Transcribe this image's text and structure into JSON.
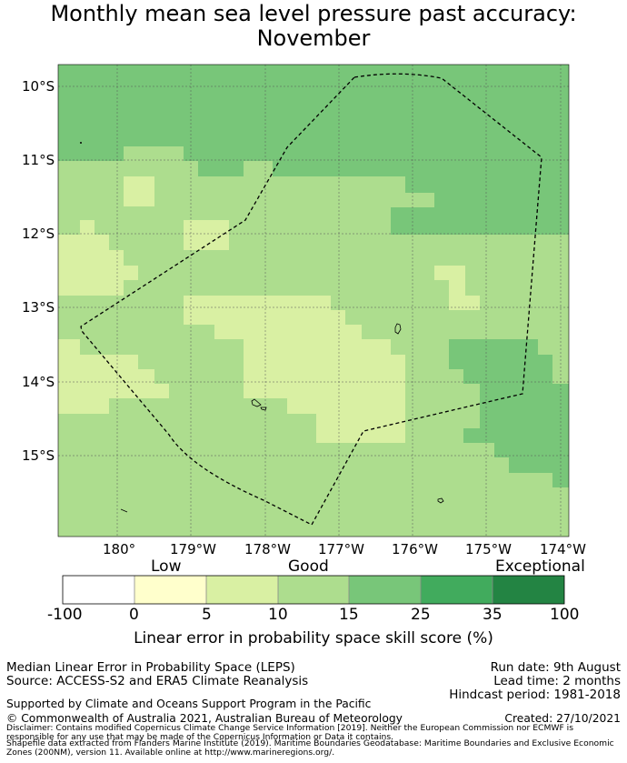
{
  "title": {
    "line1": "Monthly mean sea level pressure past accuracy:",
    "line2": "November"
  },
  "map": {
    "lat_ticks": [
      "10°S",
      "11°S",
      "12°S",
      "13°S",
      "14°S",
      "15°S"
    ],
    "lon_ticks": [
      "180°",
      "179°W",
      "178°W",
      "177°W",
      "176°W",
      "175°W",
      "174°W"
    ],
    "grid": true,
    "boundary": "dashed"
  },
  "colorbar": {
    "category_labels": [
      "Low",
      "Good",
      "Exceptional"
    ],
    "ticks": [
      "-100",
      "0",
      "5",
      "10",
      "15",
      "25",
      "35",
      "100"
    ],
    "colors": [
      "#ffffff",
      "#ffffcc",
      "#d9f0a3",
      "#addd8e",
      "#78c679",
      "#41ab5d",
      "#238443"
    ],
    "title": "Linear error in probability space skill score (%)"
  },
  "footer": {
    "method": "Median Linear Error in Probability Space (LEPS)",
    "source": "Source: ACCESS-S2 and ERA5 Climate Reanalysis",
    "run_date": "Run date: 9th August",
    "lead_time": "Lead time: 2 months",
    "hindcast": "Hindcast period: 1981-2018",
    "supported": "Supported by Climate and Oceans Support Program in the Pacific",
    "copyright": "© Commonwealth of Australia 2021, Australian Bureau of Meteorology",
    "created": "Created: 27/10/2021",
    "disclaimer1": "Disclaimer: Contains modified Copernicus Climate Change Service Information [2019]. Neither the European Commission nor ECMWF is",
    "disclaimer2": "responsible for any use that may be made of the Copernicus Information or Data it contains.",
    "shapefile1": "Shapefile data extracted from Flanders Marine Institute (2019). Maritime Boundaries Geodatabase: Maritime Boundaries and Exclusive Economic",
    "shapefile2": "Zones (200NM), version 11. Available online at http://www.marineregions.org/."
  }
}
